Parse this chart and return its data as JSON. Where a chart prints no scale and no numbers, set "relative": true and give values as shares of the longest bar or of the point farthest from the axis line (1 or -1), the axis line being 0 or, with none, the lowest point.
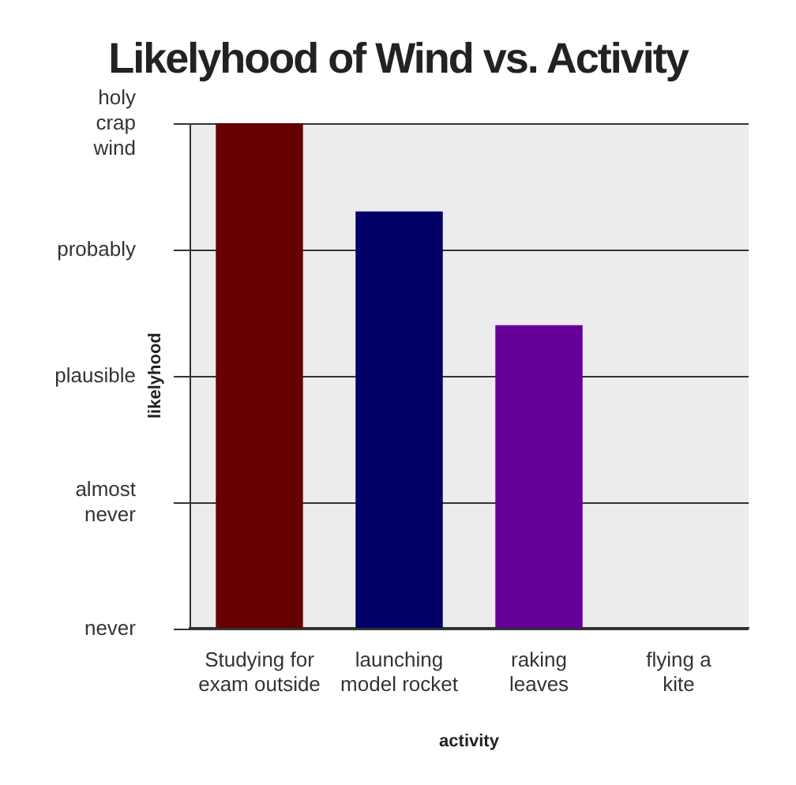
{
  "chart_data": {
    "type": "bar",
    "title": "Likelyhood of Wind vs. Activity",
    "xlabel": "activity",
    "ylabel": "likelyhood",
    "categories": [
      "Studying for exam outside",
      "launching model rocket",
      "raking leaves",
      "flying a kite"
    ],
    "values": [
      1,
      0.825,
      0.6,
      0
    ],
    "colors": [
      "#660000",
      "#000066",
      "#660099",
      "#cc0000"
    ],
    "relative": true,
    "annotations": [
      "never",
      "almost never",
      "plausible",
      "probably",
      "holy crap wind"
    ],
    "grid": "y"
  }
}
